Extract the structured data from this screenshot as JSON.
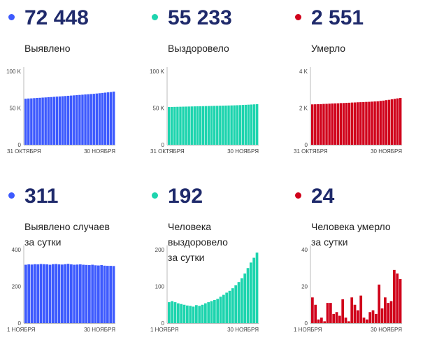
{
  "panels": [
    {
      "value": "72 448",
      "label": [
        "Выявлено"
      ],
      "color": "#3d5afe"
    },
    {
      "value": "55 233",
      "label": [
        "Выздоровело"
      ],
      "color": "#1dd4ae"
    },
    {
      "value": "2 551",
      "label": [
        "Умерло"
      ],
      "color": "#d0021b"
    },
    {
      "value": "311",
      "label": [
        "Выявлено случаев",
        "за сутки"
      ],
      "color": "#3d5afe"
    },
    {
      "value": "192",
      "label": [
        "Человека выздоровело",
        "за сутки"
      ],
      "color": "#1dd4ae"
    },
    {
      "value": "24",
      "label": [
        "Человека умерло",
        "за сутки"
      ],
      "color": "#d0021b"
    }
  ],
  "chart_data": [
    {
      "type": "bar",
      "color": "#3d5afe",
      "ylim": [
        0,
        100000
      ],
      "yticks": [
        {
          "v": 0,
          "t": "0"
        },
        {
          "v": 50000,
          "t": "50 K"
        },
        {
          "v": 100000,
          "t": "100 K"
        }
      ],
      "x_start_label": "31 ОКТЯБРЯ",
      "x_end_label": "30 НОЯБРЯ",
      "values": [
        62700,
        63000,
        63200,
        63500,
        63800,
        64000,
        64300,
        64500,
        64800,
        65000,
        65300,
        65600,
        65800,
        66100,
        66400,
        66700,
        67000,
        67300,
        67600,
        67900,
        68200,
        68500,
        68800,
        69100,
        69400,
        69800,
        70200,
        70600,
        71000,
        71400,
        71800,
        72448
      ]
    },
    {
      "type": "bar",
      "color": "#1dd4ae",
      "ylim": [
        0,
        100000
      ],
      "yticks": [
        {
          "v": 0,
          "t": "0"
        },
        {
          "v": 50000,
          "t": "50 K"
        },
        {
          "v": 100000,
          "t": "100 K"
        }
      ],
      "x_start_label": "31 ОКТЯБРЯ",
      "x_end_label": "30 НОЯБРЯ",
      "values": [
        51400,
        51500,
        51600,
        51700,
        51800,
        51900,
        52000,
        52100,
        52200,
        52300,
        52400,
        52500,
        52600,
        52700,
        52800,
        52900,
        53000,
        53100,
        53200,
        53300,
        53400,
        53500,
        53600,
        53700,
        53850,
        54000,
        54200,
        54400,
        54600,
        54800,
        55040,
        55233
      ]
    },
    {
      "type": "bar",
      "color": "#d0021b",
      "ylim": [
        0,
        4000
      ],
      "yticks": [
        {
          "v": 0,
          "t": "0"
        },
        {
          "v": 2000,
          "t": "2 K"
        },
        {
          "v": 4000,
          "t": "4 K"
        }
      ],
      "x_start_label": "31 ОКТЯБРЯ",
      "x_end_label": "30 НОЯБРЯ",
      "values": [
        2200,
        2205,
        2210,
        2215,
        2225,
        2230,
        2240,
        2250,
        2255,
        2260,
        2270,
        2275,
        2285,
        2290,
        2300,
        2305,
        2315,
        2320,
        2325,
        2335,
        2340,
        2350,
        2360,
        2370,
        2390,
        2405,
        2430,
        2450,
        2475,
        2500,
        2527,
        2551
      ]
    },
    {
      "type": "bar",
      "color": "#3d5afe",
      "ylim": [
        0,
        400
      ],
      "yticks": [
        {
          "v": 0,
          "t": "0"
        },
        {
          "v": 200,
          "t": "200"
        },
        {
          "v": 400,
          "t": "400"
        }
      ],
      "x_start_label": "1 НОЯБРЯ",
      "x_end_label": "30 НОЯБРЯ",
      "values": [
        318,
        320,
        319,
        321,
        320,
        322,
        321,
        320,
        318,
        321,
        322,
        320,
        319,
        321,
        323,
        320,
        318,
        319,
        320,
        318,
        317,
        316,
        318,
        315,
        314,
        316,
        313,
        312,
        312,
        311
      ]
    },
    {
      "type": "bar",
      "color": "#1dd4ae",
      "ylim": [
        0,
        200
      ],
      "yticks": [
        {
          "v": 0,
          "t": "0"
        },
        {
          "v": 100,
          "t": "100"
        },
        {
          "v": 200,
          "t": "200"
        }
      ],
      "x_start_label": "1 НОЯБРЯ",
      "x_end_label": "30 НОЯБРЯ",
      "values": [
        57,
        60,
        57,
        54,
        52,
        50,
        48,
        47,
        45,
        49,
        47,
        50,
        54,
        57,
        60,
        63,
        66,
        72,
        77,
        83,
        88,
        95,
        103,
        112,
        122,
        135,
        150,
        165,
        178,
        192
      ]
    },
    {
      "type": "bar",
      "color": "#d0021b",
      "ylim": [
        0,
        40
      ],
      "yticks": [
        {
          "v": 0,
          "t": "0"
        },
        {
          "v": 20,
          "t": "20"
        },
        {
          "v": 40,
          "t": "40"
        }
      ],
      "x_start_label": "1 НОЯБРЯ",
      "x_end_label": "30 НОЯБРЯ",
      "values": [
        14,
        10,
        2,
        3,
        1,
        11,
        11,
        5,
        6,
        4,
        13,
        3,
        1,
        14,
        10,
        7,
        15,
        3,
        2,
        6,
        7,
        5,
        21,
        8,
        14,
        11,
        12,
        29,
        27,
        24
      ]
    }
  ]
}
